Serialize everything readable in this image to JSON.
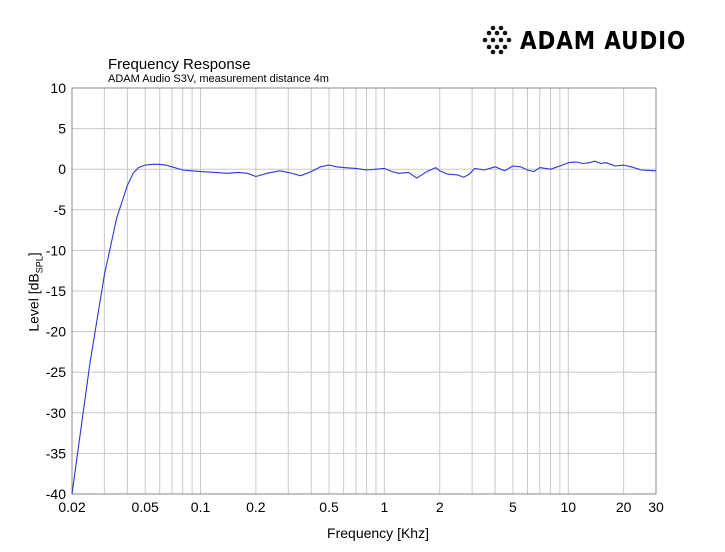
{
  "brand": {
    "name": "ADAM AUDIO",
    "logo_icon": "dotted-cross-logo-icon"
  },
  "chart_data": {
    "type": "line",
    "title": "Frequency Response",
    "subtitle": "ADAM Audio S3V, measurement distance 4m",
    "xlabel": "Frequency [Khz]",
    "ylabel": "Level [dB",
    "ylabel_subscript": "SPL",
    "ylabel_suffix": "]",
    "x_scale": "log",
    "xlim": [
      0.02,
      30
    ],
    "ylim": [
      -40,
      10
    ],
    "grid": true,
    "x_ticks": [
      0.02,
      0.05,
      0.1,
      0.2,
      0.5,
      1,
      2,
      5,
      10,
      20,
      30
    ],
    "x_tick_labels": [
      "0.02",
      "0.05",
      "0.1",
      "0.2",
      "0.5",
      "1",
      "2",
      "5",
      "10",
      "20",
      "30"
    ],
    "y_ticks": [
      10,
      5,
      0,
      -5,
      -10,
      -15,
      -20,
      -25,
      -30,
      -35,
      -40
    ],
    "y_tick_labels": [
      "10",
      "5",
      "0",
      "-5",
      "-10",
      "-15",
      "-20",
      "-25",
      "-30",
      "-35",
      "-40"
    ],
    "series": [
      {
        "color": "#3333dd",
        "x": [
          0.02,
          0.025,
          0.03,
          0.035,
          0.04,
          0.043,
          0.046,
          0.05,
          0.055,
          0.06,
          0.065,
          0.07,
          0.08,
          0.09,
          0.1,
          0.12,
          0.14,
          0.16,
          0.18,
          0.2,
          0.23,
          0.27,
          0.3,
          0.35,
          0.4,
          0.45,
          0.5,
          0.55,
          0.6,
          0.7,
          0.8,
          0.9,
          1.0,
          1.1,
          1.2,
          1.35,
          1.5,
          1.7,
          1.9,
          2.0,
          2.2,
          2.5,
          2.7,
          2.9,
          3.1,
          3.5,
          4.0,
          4.5,
          5.0,
          5.5,
          6.0,
          6.5,
          7.0,
          8.0,
          9.0,
          10.0,
          11.0,
          12.0,
          13.0,
          14.0,
          15.0,
          16.0,
          17.0,
          18.0,
          20.0,
          22.0,
          25.0,
          30.0
        ],
        "y": [
          -40,
          -24,
          -13,
          -6,
          -2,
          -0.5,
          0.2,
          0.5,
          0.6,
          0.6,
          0.5,
          0.3,
          -0.1,
          -0.2,
          -0.3,
          -0.4,
          -0.5,
          -0.4,
          -0.5,
          -0.9,
          -0.5,
          -0.2,
          -0.4,
          -0.8,
          -0.3,
          0.3,
          0.5,
          0.3,
          0.2,
          0.1,
          -0.1,
          0.0,
          0.1,
          -0.3,
          -0.5,
          -0.4,
          -1.1,
          -0.3,
          0.2,
          -0.2,
          -0.6,
          -0.7,
          -1.0,
          -0.6,
          0.1,
          -0.1,
          0.3,
          -0.2,
          0.4,
          0.3,
          -0.1,
          -0.3,
          0.2,
          0.0,
          0.4,
          0.8,
          0.9,
          0.7,
          0.8,
          1.0,
          0.7,
          0.8,
          0.6,
          0.4,
          0.5,
          0.3,
          -0.1,
          -0.2
        ]
      }
    ]
  }
}
